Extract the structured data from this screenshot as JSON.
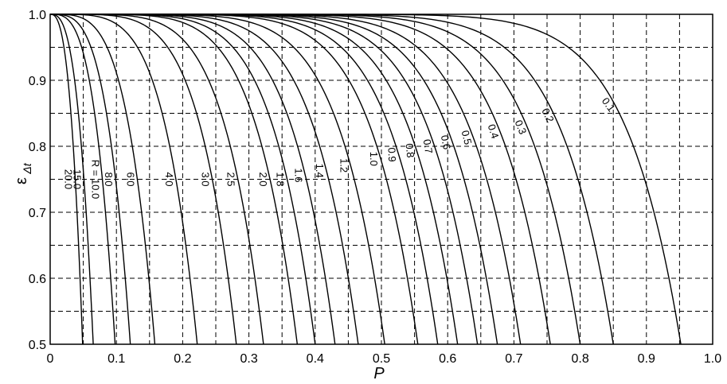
{
  "chart_data": {
    "type": "line",
    "xlabel": "P",
    "ylabel": "ε",
    "ylabel_sub": "Δt",
    "xlim": [
      0,
      1.0
    ],
    "ylim": [
      0.5,
      1.0
    ],
    "grid": true,
    "xticks": [
      "0",
      "0.1",
      "0.2",
      "0.3",
      "0.4",
      "0.5",
      "0.6",
      "0.7",
      "0.8",
      "0.9",
      "1.0"
    ],
    "yticks": [
      "0.5",
      "0.6",
      "0.7",
      "0.8",
      "0.9",
      "1.0"
    ],
    "series": [
      {
        "name": "20.0",
        "label": "20.0",
        "endpoint": 0.049,
        "x": [
          0.0
        ],
        "y": [
          1.0
        ]
      },
      {
        "name": "15.0",
        "label": "15.0",
        "endpoint": 0.065,
        "x": [
          0.0
        ],
        "y": [
          1.0
        ]
      },
      {
        "name": "10.0",
        "label": "R = 10.0",
        "endpoint": 0.098,
        "x": [
          0.0
        ],
        "y": [
          1.0
        ]
      },
      {
        "name": "8.0",
        "label": "8.0",
        "endpoint": 0.121,
        "x": [
          0.0
        ],
        "y": [
          1.0
        ]
      },
      {
        "name": "6.0",
        "label": "6.0",
        "endpoint": 0.158,
        "x": [
          0.0
        ],
        "y": [
          1.0
        ]
      },
      {
        "name": "4.0",
        "label": "4.0",
        "endpoint": 0.222,
        "x": [
          0.0
        ],
        "y": [
          1.0
        ]
      },
      {
        "name": "3.0",
        "label": "3.0",
        "endpoint": 0.281,
        "x": [
          0.0
        ],
        "y": [
          1.0
        ]
      },
      {
        "name": "2.5",
        "label": "2.5",
        "endpoint": 0.322,
        "x": [
          0.0
        ],
        "y": [
          1.0
        ]
      },
      {
        "name": "2.0",
        "label": "2.0",
        "endpoint": 0.373,
        "x": [
          0.0
        ],
        "y": [
          1.0
        ]
      },
      {
        "name": "1.8",
        "label": "1.8",
        "endpoint": 0.4,
        "x": [
          0.0
        ],
        "y": [
          1.0
        ]
      },
      {
        "name": "1.6",
        "label": "1.6",
        "endpoint": 0.43,
        "x": [
          0.0
        ],
        "y": [
          1.0
        ]
      },
      {
        "name": "1.4",
        "label": "1.4",
        "endpoint": 0.465,
        "x": [
          0.0
        ],
        "y": [
          1.0
        ]
      },
      {
        "name": "1.2",
        "label": "1.2",
        "endpoint": 0.505,
        "x": [
          0.0
        ],
        "y": [
          1.0
        ]
      },
      {
        "name": "1.0",
        "label": "1.0",
        "endpoint": 0.555,
        "x": [
          0.0
        ],
        "y": [
          1.0
        ]
      },
      {
        "name": "0.9",
        "label": "0.9",
        "endpoint": 0.585,
        "x": [
          0.0
        ],
        "y": [
          1.0
        ]
      },
      {
        "name": "0.8",
        "label": "0.8",
        "endpoint": 0.615,
        "x": [
          0.0
        ],
        "y": [
          1.0
        ]
      },
      {
        "name": "0.7",
        "label": "0.7",
        "endpoint": 0.645,
        "x": [
          0.0
        ],
        "y": [
          1.0
        ]
      },
      {
        "name": "0.6",
        "label": "0.6",
        "endpoint": 0.675,
        "x": [
          0.0
        ],
        "y": [
          1.0
        ]
      },
      {
        "name": "0.5",
        "label": "0.5",
        "endpoint": 0.71,
        "x": [
          0.0
        ],
        "y": [
          1.0
        ]
      },
      {
        "name": "0.4",
        "label": "0.4",
        "endpoint": 0.755,
        "x": [
          0.0
        ],
        "y": [
          1.0
        ]
      },
      {
        "name": "0.3",
        "label": "0.3",
        "endpoint": 0.8,
        "x": [
          0.0
        ],
        "y": [
          1.0
        ]
      },
      {
        "name": "0.2",
        "label": "0.2",
        "endpoint": 0.85,
        "x": [
          0.0
        ],
        "y": [
          1.0
        ]
      },
      {
        "name": "0.1",
        "label": "0.1",
        "endpoint": 0.952,
        "x": [
          0.0
        ],
        "y": [
          1.0
        ]
      }
    ]
  }
}
